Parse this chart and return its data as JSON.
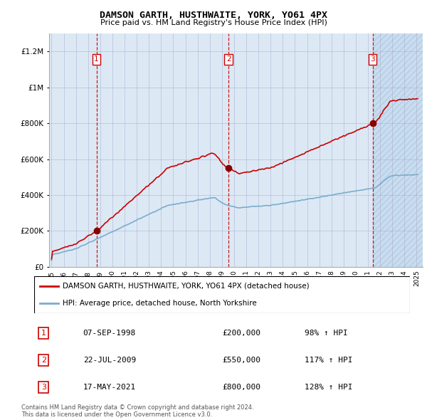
{
  "title": "DAMSON GARTH, HUSTHWAITE, YORK, YO61 4PX",
  "subtitle": "Price paid vs. HM Land Registry's House Price Index (HPI)",
  "legend_line1": "DAMSON GARTH, HUSTHWAITE, YORK, YO61 4PX (detached house)",
  "legend_line2": "HPI: Average price, detached house, North Yorkshire",
  "sale_labels": [
    "1",
    "2",
    "3"
  ],
  "sale_dates": [
    "07-SEP-1998",
    "22-JUL-2009",
    "17-MAY-2021"
  ],
  "sale_prices": [
    "£200,000",
    "£550,000",
    "£800,000"
  ],
  "sale_hpi": [
    "98% ↑ HPI",
    "117% ↑ HPI",
    "128% ↑ HPI"
  ],
  "sale_years": [
    1998.69,
    2009.55,
    2021.38
  ],
  "sale_values": [
    200000,
    550000,
    800000
  ],
  "footnote": "Contains HM Land Registry data © Crown copyright and database right 2024.\nThis data is licensed under the Open Government Licence v3.0.",
  "red_color": "#cc0000",
  "blue_color": "#7aadcc",
  "dashed_color": "#cc0000",
  "plot_bg_color": "#dce9f5",
  "hatch_color": "#c8ddf0",
  "background_color": "#ffffff",
  "grid_color": "#aaaacc",
  "ylim": [
    0,
    1300000
  ],
  "xlim_start": 1994.8,
  "xlim_end": 2025.5,
  "hatch_start": 2021.38,
  "yticks": [
    0,
    200000,
    400000,
    600000,
    800000,
    1000000,
    1200000
  ],
  "xticks": [
    1995,
    1996,
    1997,
    1998,
    1999,
    2000,
    2001,
    2002,
    2003,
    2004,
    2005,
    2006,
    2007,
    2008,
    2009,
    2010,
    2011,
    2012,
    2013,
    2014,
    2015,
    2016,
    2017,
    2018,
    2019,
    2020,
    2021,
    2022,
    2023,
    2024,
    2025
  ]
}
